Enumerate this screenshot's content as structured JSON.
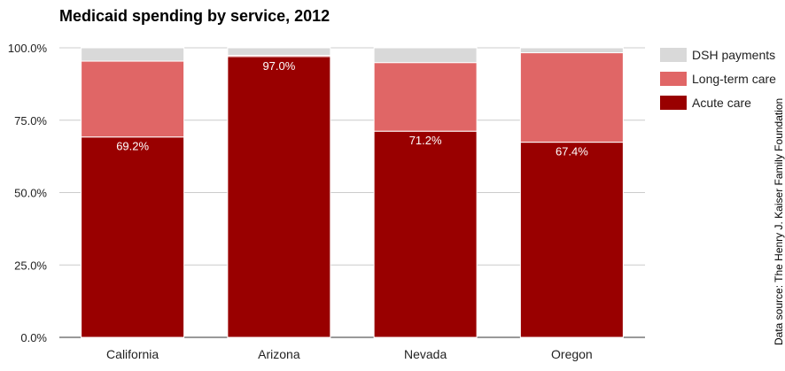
{
  "chart_data": {
    "type": "bar",
    "stacked": true,
    "title": "Medicaid spending by service, 2012",
    "xlabel": "",
    "ylabel": "",
    "ylim": [
      0,
      100
    ],
    "yticks": [
      "0.0%",
      "25.0%",
      "50.0%",
      "75.0%",
      "100.0%"
    ],
    "grid": true,
    "legend_position": "right",
    "categories": [
      "California",
      "Arizona",
      "Nevada",
      "Oregon"
    ],
    "series": [
      {
        "name": "Acute care",
        "color": "#990000",
        "values": [
          69.2,
          97.0,
          71.2,
          67.4
        ],
        "labels": [
          "69.2%",
          "97.0%",
          "71.2%",
          "67.4%"
        ]
      },
      {
        "name": "Long-term care",
        "color": "#e06666",
        "values": [
          26.2,
          0.4,
          23.7,
          30.9
        ]
      },
      {
        "name": "DSH payments",
        "color": "#d9d9d9",
        "values": [
          4.6,
          2.6,
          5.1,
          1.7
        ]
      }
    ],
    "annotation": "Data source: The Henry J. Kaiser Family Foundation"
  }
}
